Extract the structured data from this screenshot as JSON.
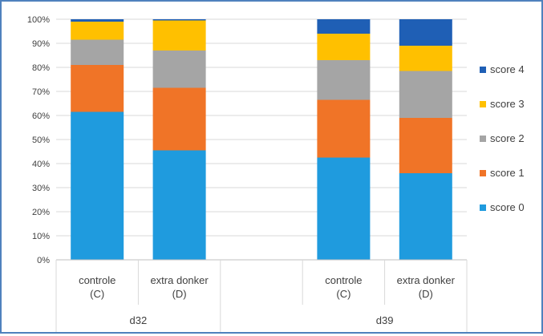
{
  "chart_data": {
    "type": "bar",
    "stacked": true,
    "percent": true,
    "title": "",
    "xlabel": "",
    "ylabel": "",
    "ylim": [
      0,
      100
    ],
    "yticks": [
      "0%",
      "10%",
      "20%",
      "30%",
      "40%",
      "50%",
      "60%",
      "70%",
      "80%",
      "90%",
      "100%"
    ],
    "groups": [
      {
        "label": "d32",
        "categories": [
          "controle (C)",
          "extra donker (D)"
        ]
      },
      {
        "label": "d39",
        "categories": [
          "controle (C)",
          "extra donker (D)"
        ]
      }
    ],
    "category_lines": [
      [
        "controle",
        "(C)"
      ],
      [
        "extra donker",
        "(D)"
      ],
      [
        "controle",
        "(C)"
      ],
      [
        "extra donker",
        "(D)"
      ]
    ],
    "series": [
      {
        "name": "score 0",
        "color": "#1f9bde",
        "values": [
          61.5,
          45.5,
          42.5,
          36
        ]
      },
      {
        "name": "score 1",
        "color": "#f07427",
        "values": [
          19.5,
          26,
          24,
          23
        ]
      },
      {
        "name": "score 2",
        "color": "#a5a5a5",
        "values": [
          10.5,
          15.5,
          16.5,
          19.5
        ]
      },
      {
        "name": "score 3",
        "color": "#ffc000",
        "values": [
          7.5,
          12.5,
          11,
          10.5
        ]
      },
      {
        "name": "score 4",
        "color": "#1f5fb5",
        "values": [
          1,
          0.5,
          6,
          11
        ]
      }
    ],
    "grid": true,
    "legend": "right"
  }
}
